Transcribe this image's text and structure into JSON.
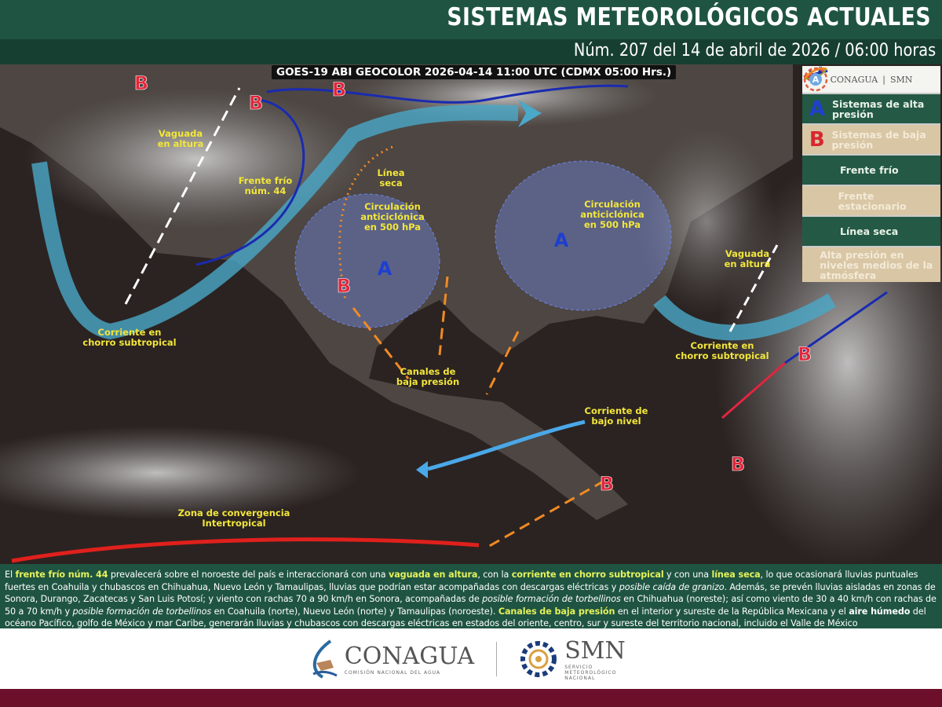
{
  "header": {
    "title": "SISTEMAS METEOROLÓGICOS ACTUALES",
    "subtitle": "Núm. 207 del 14 de abril de 2026 / 06:00 horas"
  },
  "map": {
    "satellite_caption": "GOES-19 ABI GEOCOLOR 2026-04-14 11:00 UTC (CDMX  05:00 Hrs.)",
    "labels": [
      {
        "lines": [
          "Vaguada",
          "en altura"
        ]
      },
      {
        "lines": [
          "Frente frío",
          "núm. 44"
        ]
      },
      {
        "lines": [
          "Línea",
          "seca"
        ]
      },
      {
        "lines": [
          "Circulación",
          "anticiclónica",
          "en 500 hPa"
        ]
      },
      {
        "lines": [
          "Circulación",
          "anticiclónica",
          "en 500 hPa"
        ]
      },
      {
        "lines": [
          "Vaguada",
          "en altura"
        ]
      },
      {
        "lines": [
          "Corriente en",
          "chorro subtropical"
        ]
      },
      {
        "lines": [
          "Canales de",
          "baja presión"
        ]
      },
      {
        "lines": [
          "Corriente en",
          "chorro subtropical"
        ]
      },
      {
        "lines": [
          "Corriente de",
          "bajo nivel"
        ]
      },
      {
        "lines": [
          "Zona de convergencia",
          "Intertropical"
        ]
      }
    ],
    "high_symbol": "A",
    "low_symbol": "B",
    "colors": {
      "high": "#1e3fd0",
      "low": "#e3263a",
      "jet": "#4aa8c8",
      "dry_line": "#f08a24",
      "itcz": "#e0201c",
      "label": "#f2e63a"
    }
  },
  "legend": {
    "logo_left": "CONAGUA",
    "logo_right": "SMN",
    "items": [
      {
        "icon": "A",
        "label": "Sistemas de alta presión"
      },
      {
        "icon": "B",
        "label": "Sistemas de baja presión"
      },
      {
        "icon": "cold-front-icon",
        "label": "Frente frío"
      },
      {
        "icon": "stationary-front-icon",
        "label": "Frente estacionario"
      },
      {
        "icon": "dry-line-icon",
        "label": "Línea seca"
      },
      {
        "icon": "A",
        "label": "Alta presión en niveles medios de la atmósfera"
      }
    ]
  },
  "description": [
    {
      "t": "El ",
      "s": ""
    },
    {
      "t": "frente frío núm. 44",
      "s": "hl"
    },
    {
      "t": " prevalecerá sobre el noroeste del país e interaccionará con una ",
      "s": ""
    },
    {
      "t": "vaguada en altura",
      "s": "hl"
    },
    {
      "t": ", con la ",
      "s": ""
    },
    {
      "t": "corriente en chorro subtropical",
      "s": "hl"
    },
    {
      "t": " y con una ",
      "s": ""
    },
    {
      "t": "línea seca",
      "s": "hl"
    },
    {
      "t": ", lo que ocasionará lluvias puntuales fuertes en Coahuila y chubascos en Chihuahua, Nuevo León y Tamaulipas, lluvias que podrían estar acompañadas con descargas eléctricas y ",
      "s": ""
    },
    {
      "t": "posible caída de granizo",
      "s": "i"
    },
    {
      "t": ". Además, se prevén lluvias aisladas en zonas de Sonora, Durango, Zacatecas y San Luis Potosí; y viento con rachas 70 a 90 km/h en Sonora, acompañadas de ",
      "s": ""
    },
    {
      "t": "posible formación de torbellinos",
      "s": "i"
    },
    {
      "t": " en Chihuahua (noreste); así como viento de 30 a 40 km/h con rachas de 50 a 70 km/h y ",
      "s": ""
    },
    {
      "t": "posible formación de torbellinos",
      "s": "i"
    },
    {
      "t": " en Coahuila (norte), Nuevo León (norte) y Tamaulipas (noroeste). ",
      "s": ""
    },
    {
      "t": "Canales de baja presión",
      "s": "hl"
    },
    {
      "t": " en el interior y sureste de la República Mexicana y el ",
      "s": ""
    },
    {
      "t": "aire húmedo",
      "s": "b"
    },
    {
      "t": " del océano Pacífico, golfo de México y mar Caribe, generarán lluvias y chubascos con descargas eléctricas en estados del oriente, centro, sur y sureste del territorio nacional, incluido el Valle de México",
      "s": ""
    }
  ],
  "footer": {
    "conagua": "CONAGUA",
    "conagua_sub": "COMISIÓN NACIONAL DEL AGUA",
    "smn": "SMN",
    "smn_sub": "SERVICIO METEOROLÓGICO NACIONAL"
  }
}
